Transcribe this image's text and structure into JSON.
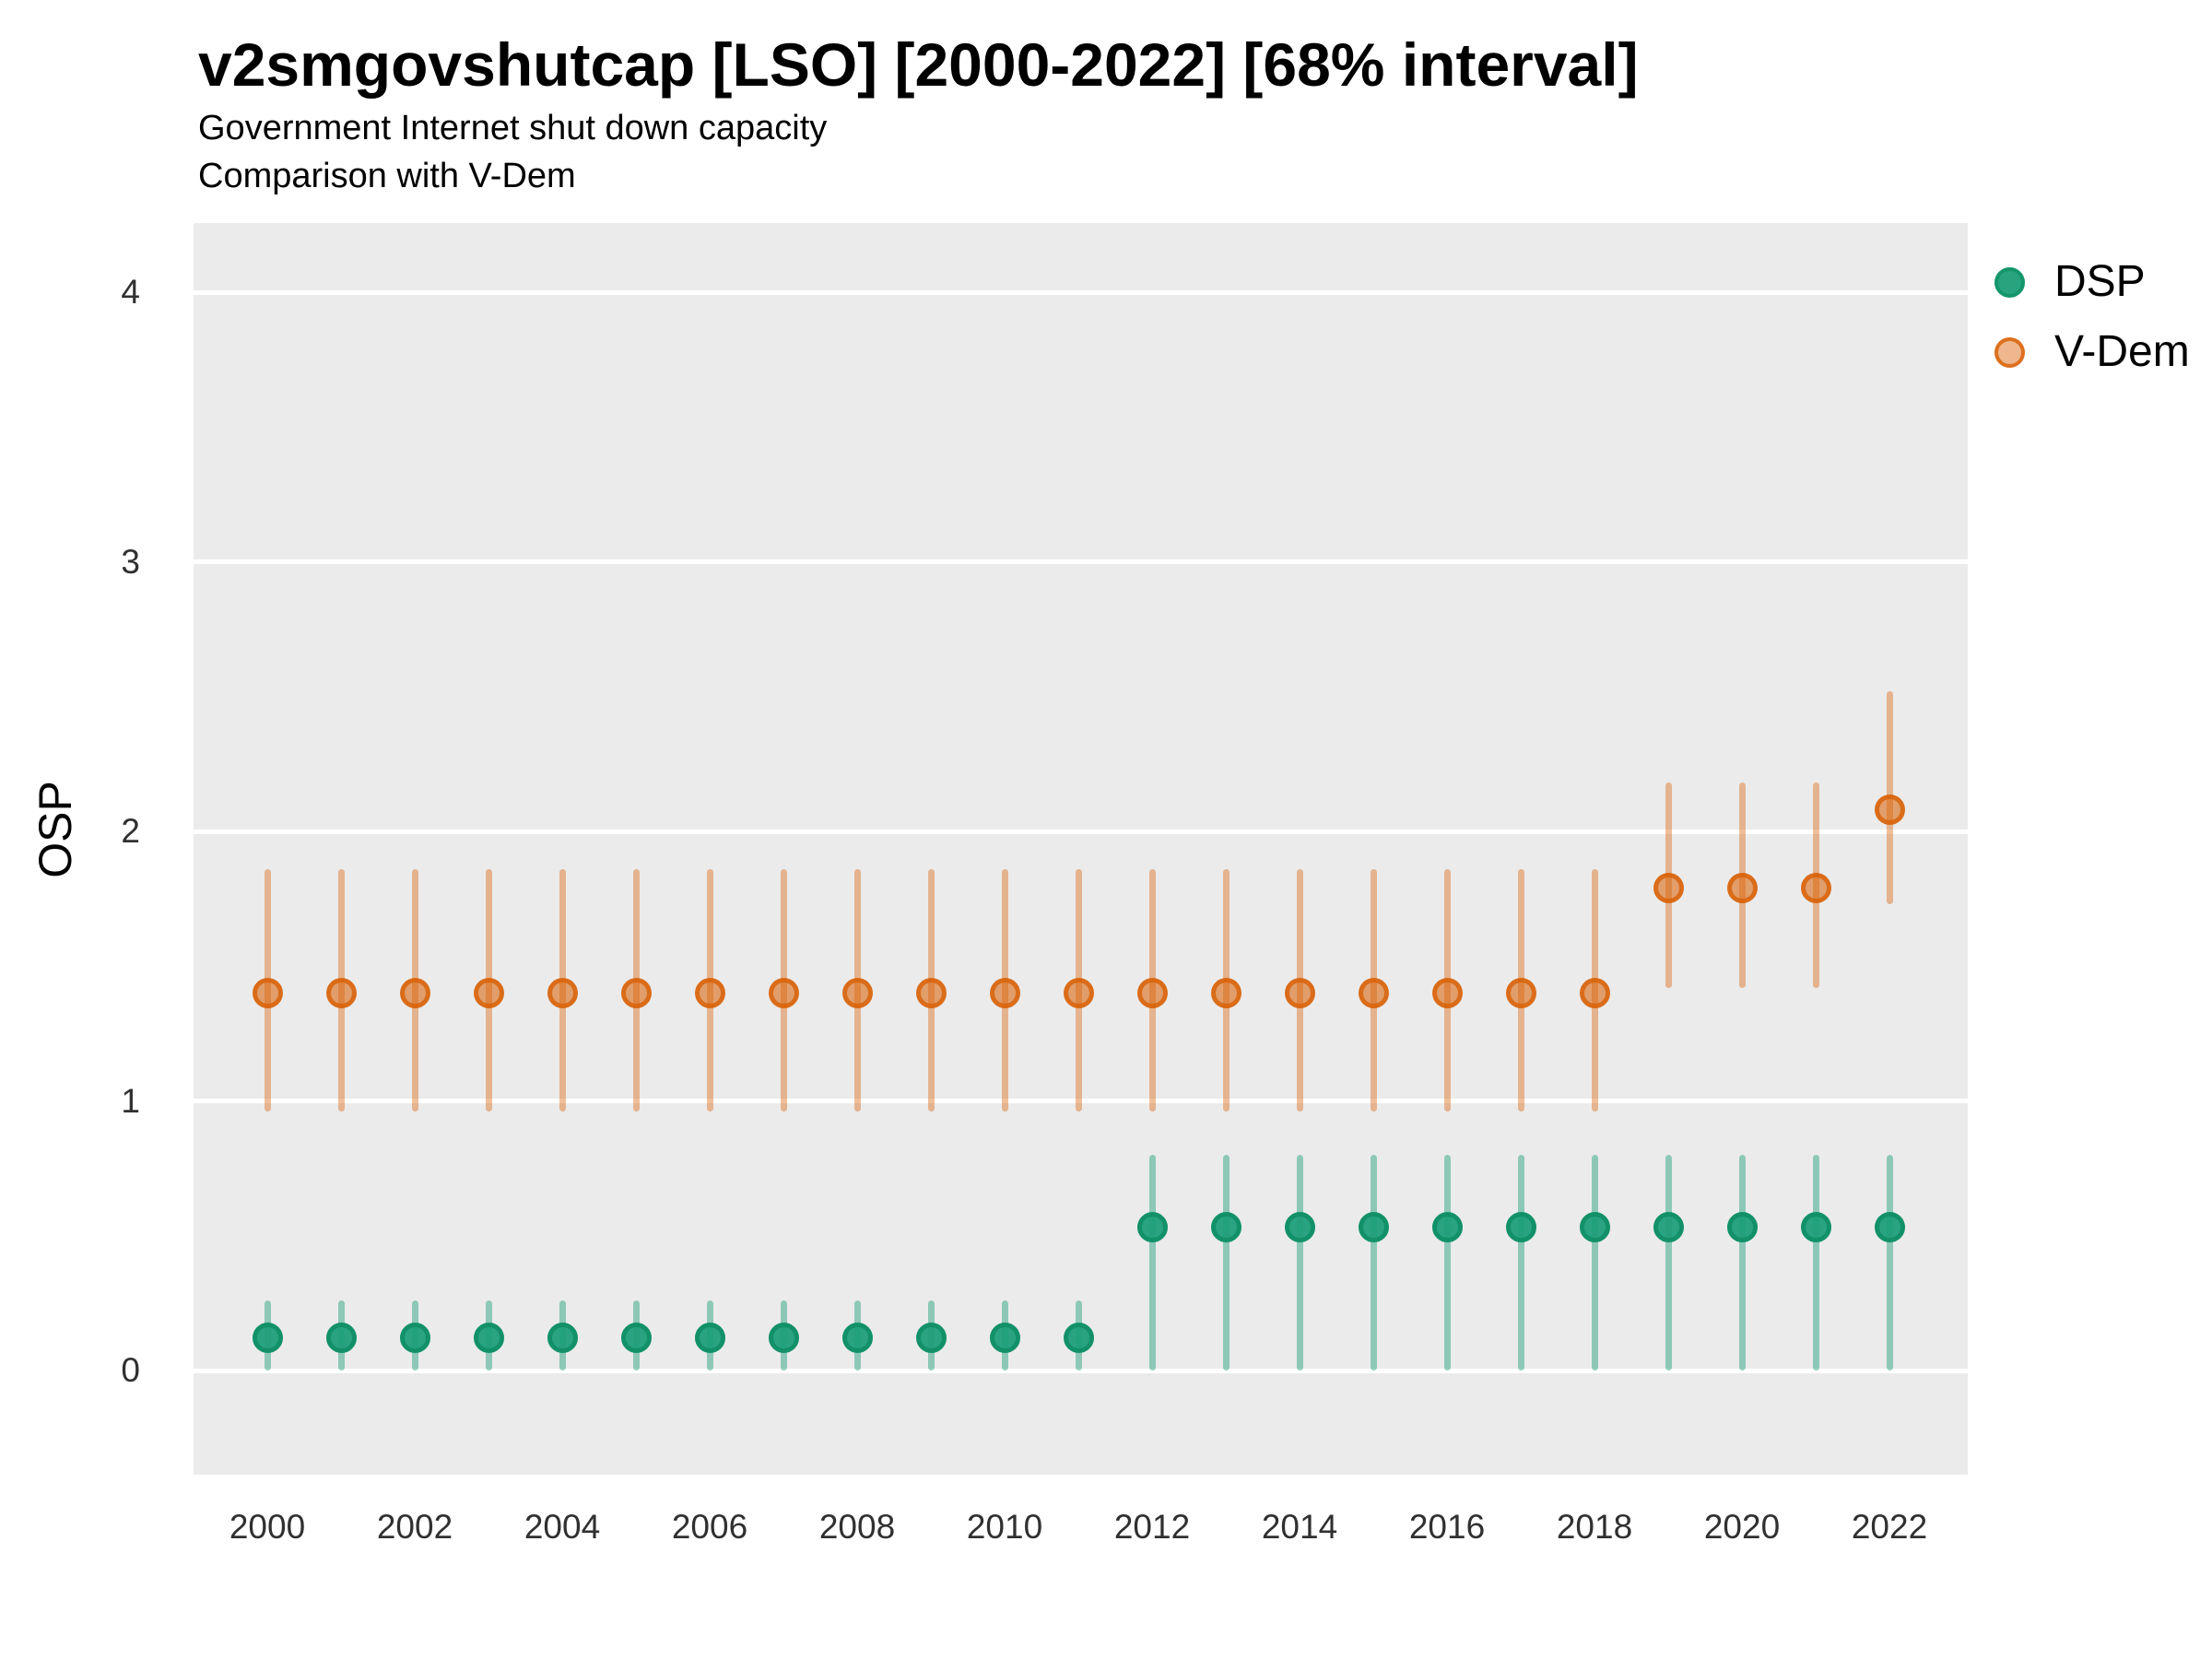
{
  "header": {
    "title": "v2smgovshutcap [LSO] [2000-2022] [68% interval]",
    "subtitle1": "Government Internet shut down capacity",
    "subtitle2": "Comparison with V-Dem"
  },
  "colors": {
    "panel_background": "#EBEBEB",
    "gridline": "#FFFFFF",
    "dsp_base": "#1B9E77",
    "vdem_base": "#D95F02"
  },
  "chart_data": {
    "type": "scatter",
    "title": "v2smgovshutcap [LSO] [2000-2022] [68% interval]",
    "subtitle": "Government Internet shut down capacity / Comparison with V-Dem",
    "xlabel": "",
    "ylabel": "OSP",
    "ylim": [
      -0.39,
      4.26
    ],
    "yticks": [
      0,
      1,
      2,
      3,
      4
    ],
    "ytick_labels": [
      "0",
      "1",
      "2",
      "3",
      "4"
    ],
    "x": [
      2000,
      2001,
      2002,
      2003,
      2004,
      2005,
      2006,
      2007,
      2008,
      2009,
      2010,
      2011,
      2012,
      2013,
      2014,
      2015,
      2016,
      2017,
      2018,
      2019,
      2020,
      2021,
      2022
    ],
    "x_tick_labels": [
      "2000",
      "2002",
      "2004",
      "2006",
      "2008",
      "2010",
      "2012",
      "2014",
      "2016",
      "2018",
      "2020",
      "2022"
    ],
    "grid": "horizontal-major-only",
    "legend_position": "right",
    "interval_level": "68%",
    "series": [
      {
        "name": "DSP",
        "id": "dsp",
        "base_color": "#1B9E77",
        "line_color": "rgba(27,158,119,0.45)",
        "point_fill": "rgba(27,158,119,0.93)",
        "point_border": "#129169",
        "legend_fill": "rgba(27,158,119,0.95)",
        "legend_border": "#14966B",
        "est": [
          0.12,
          0.12,
          0.12,
          0.12,
          0.12,
          0.12,
          0.12,
          0.12,
          0.12,
          0.12,
          0.12,
          0.12,
          0.53,
          0.53,
          0.53,
          0.53,
          0.53,
          0.53,
          0.53,
          0.53,
          0.53,
          0.53,
          0.53
        ],
        "lo": [
          0.0,
          0.0,
          0.0,
          0.0,
          0.0,
          0.0,
          0.0,
          0.0,
          0.0,
          0.0,
          0.0,
          0.0,
          0.0,
          0.0,
          0.0,
          0.0,
          0.0,
          0.0,
          0.0,
          0.0,
          0.0,
          0.0,
          0.0
        ],
        "hi": [
          0.26,
          0.26,
          0.26,
          0.26,
          0.26,
          0.26,
          0.26,
          0.26,
          0.26,
          0.26,
          0.26,
          0.26,
          0.8,
          0.8,
          0.8,
          0.8,
          0.8,
          0.8,
          0.8,
          0.8,
          0.8,
          0.8,
          0.8
        ]
      },
      {
        "name": "V-Dem",
        "id": "vdem",
        "base_color": "#D95F02",
        "line_color": "rgba(217,95,2,0.40)",
        "point_fill": "rgba(217,95,2,0.55)",
        "point_border": "rgba(217,95,2,0.78)",
        "legend_fill": "rgba(217,95,2,0.45)",
        "legend_border": "rgba(217,95,2,0.80)",
        "est": [
          1.4,
          1.4,
          1.4,
          1.4,
          1.4,
          1.4,
          1.4,
          1.4,
          1.4,
          1.4,
          1.4,
          1.4,
          1.4,
          1.4,
          1.4,
          1.4,
          1.4,
          1.4,
          1.4,
          1.79,
          1.79,
          1.79,
          2.08
        ],
        "lo": [
          0.96,
          0.96,
          0.96,
          0.96,
          0.96,
          0.96,
          0.96,
          0.96,
          0.96,
          0.96,
          0.96,
          0.96,
          0.96,
          0.96,
          0.96,
          0.96,
          0.96,
          0.96,
          0.96,
          1.42,
          1.42,
          1.42,
          1.73
        ],
        "hi": [
          1.86,
          1.86,
          1.86,
          1.86,
          1.86,
          1.86,
          1.86,
          1.86,
          1.86,
          1.86,
          1.86,
          1.86,
          1.86,
          1.86,
          1.86,
          1.86,
          1.86,
          1.86,
          1.86,
          2.18,
          2.18,
          2.18,
          2.52
        ]
      }
    ]
  }
}
